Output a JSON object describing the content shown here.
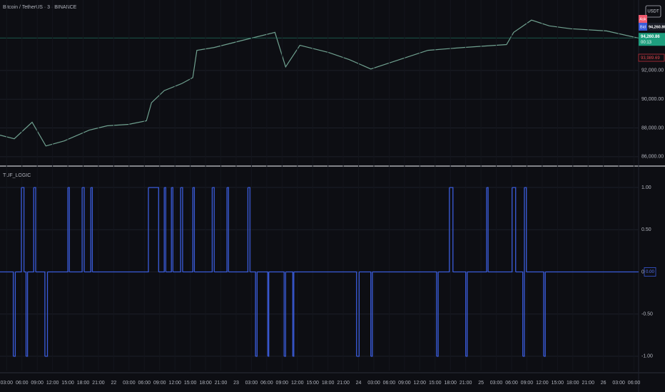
{
  "chart_data": [
    {
      "type": "line",
      "title": "Bitcoin / TetherUS · 3 · BINANCE",
      "color": "#6fa08f",
      "x": [
        1.7,
        4.5,
        8.0,
        10.7,
        14.3,
        19.2,
        22.7,
        26.9,
        30.4,
        31.4,
        33.9,
        37.4,
        39.5,
        40.3,
        43.7,
        49.3,
        55.6,
        57.7,
        60.5,
        66.1,
        70.2,
        74.4,
        80.0,
        85.6,
        92.6,
        101.0,
        102.4,
        105.9,
        109.4,
        113.6,
        120.6,
        126.9
      ],
      "values": [
        87500,
        87250,
        88400,
        86750,
        87100,
        87850,
        88150,
        88250,
        88500,
        89750,
        90600,
        91100,
        91500,
        93400,
        93600,
        94100,
        94650,
        92250,
        93750,
        93250,
        92750,
        92100,
        92750,
        93400,
        93600,
        93800,
        94650,
        95500,
        95100,
        94900,
        94750,
        94250
      ],
      "xlim": [
        1.7,
        126.9
      ],
      "ylim": [
        85400,
        96900
      ],
      "yticks": [
        {
          "value": 86000,
          "label": "86,000.00"
        },
        {
          "value": 88000,
          "label": "88,000.00"
        },
        {
          "value": 90000,
          "label": "90,000.00"
        },
        {
          "value": 92000,
          "label": "92,000.00"
        }
      ],
      "grid": true,
      "last_price": {
        "value": 94260.86,
        "label": "94,260.86"
      },
      "currency": "USDT",
      "ask_label": "Ask",
      "bid_label": "Bid",
      "bid_price": "94,260.86",
      "countdown": "00:13",
      "prev_price": "93,989.69"
    },
    {
      "type": "step",
      "title": "TUF_LOGIC",
      "color": "#3a5bd9",
      "x": [
        1.7,
        4.3,
        4.7,
        5.9,
        6.4,
        6.8,
        7.1,
        8.3,
        8.7,
        10.5,
        11.0,
        15.0,
        15.3,
        17.8,
        18.2,
        19.5,
        19.8,
        30.8,
        32.8,
        33.9,
        34.2,
        35.3,
        35.6,
        37.1,
        37.5,
        39.5,
        39.8,
        43.3,
        43.7,
        46.2,
        46.5,
        50.3,
        50.7,
        51.8,
        52.1,
        54.2,
        54.4,
        57.4,
        57.7,
        59.1,
        59.3,
        71.6,
        72.1,
        74.4,
        74.7,
        87.3,
        87.6,
        89.8,
        90.5,
        93.0,
        93.3,
        97.1,
        97.4,
        102.1,
        102.8,
        104.2,
        104.5,
        104.9,
        108.3,
        108.6,
        126.9
      ],
      "values": [
        0,
        -1,
        0,
        1,
        0,
        -1,
        0,
        1,
        0,
        -1,
        0,
        1,
        0,
        1,
        0,
        1,
        0,
        1,
        0,
        1,
        0,
        1,
        0,
        1,
        0,
        1,
        0,
        1,
        0,
        1,
        0,
        1,
        0,
        -1,
        0,
        -1,
        0,
        -1,
        0,
        -1,
        0,
        -1,
        0,
        -1,
        0,
        -1,
        0,
        1,
        0,
        -1,
        0,
        1,
        0,
        1,
        0,
        -1,
        1,
        0,
        -1,
        0,
        0
      ],
      "xlim": [
        1.7,
        126.9
      ],
      "ylim": [
        -1.17,
        1.22
      ],
      "yticks": [
        {
          "value": 1,
          "label": "1.00"
        },
        {
          "value": 0.5,
          "label": "0.50"
        },
        {
          "value": 0,
          "label": "0.00"
        },
        {
          "value": -0.5,
          "label": "-0.50"
        },
        {
          "value": -1,
          "label": "-1.00"
        }
      ],
      "grid": true,
      "current_label": {
        "value": 0,
        "label": "0.00"
      },
      "xticks": [
        {
          "value": 3,
          "label": "03:00"
        },
        {
          "value": 6,
          "label": "06:00"
        },
        {
          "value": 9,
          "label": "09:00"
        },
        {
          "value": 12,
          "label": "12:00"
        },
        {
          "value": 15,
          "label": "15:00"
        },
        {
          "value": 18,
          "label": "18:00"
        },
        {
          "value": 21,
          "label": "21:00"
        },
        {
          "value": 24,
          "label": "22"
        },
        {
          "value": 27,
          "label": "03:00"
        },
        {
          "value": 30,
          "label": "06:00"
        },
        {
          "value": 33,
          "label": "09:00"
        },
        {
          "value": 36,
          "label": "12:00"
        },
        {
          "value": 39,
          "label": "15:00"
        },
        {
          "value": 42,
          "label": "18:00"
        },
        {
          "value": 45,
          "label": "21:00"
        },
        {
          "value": 48,
          "label": "23"
        },
        {
          "value": 51,
          "label": "03:00"
        },
        {
          "value": 54,
          "label": "06:00"
        },
        {
          "value": 57,
          "label": "09:00"
        },
        {
          "value": 60,
          "label": "12:00"
        },
        {
          "value": 63,
          "label": "15:00"
        },
        {
          "value": 66,
          "label": "18:00"
        },
        {
          "value": 69,
          "label": "21:00"
        },
        {
          "value": 72,
          "label": "24"
        },
        {
          "value": 75,
          "label": "03:00"
        },
        {
          "value": 78,
          "label": "06:00"
        },
        {
          "value": 81,
          "label": "09:00"
        },
        {
          "value": 84,
          "label": "12:00"
        },
        {
          "value": 87,
          "label": "15:00"
        },
        {
          "value": 90,
          "label": "18:00"
        },
        {
          "value": 93,
          "label": "21:00"
        },
        {
          "value": 96,
          "label": "25"
        },
        {
          "value": 99,
          "label": "03:00"
        },
        {
          "value": 102,
          "label": "06:00"
        },
        {
          "value": 105,
          "label": "09:00"
        },
        {
          "value": 108,
          "label": "12:00"
        },
        {
          "value": 111,
          "label": "15:00"
        },
        {
          "value": 114,
          "label": "18:00"
        },
        {
          "value": 117,
          "label": "21:00"
        },
        {
          "value": 120,
          "label": "26"
        },
        {
          "value": 123,
          "label": "03:00"
        },
        {
          "value": 126,
          "label": "06:00"
        }
      ]
    }
  ]
}
